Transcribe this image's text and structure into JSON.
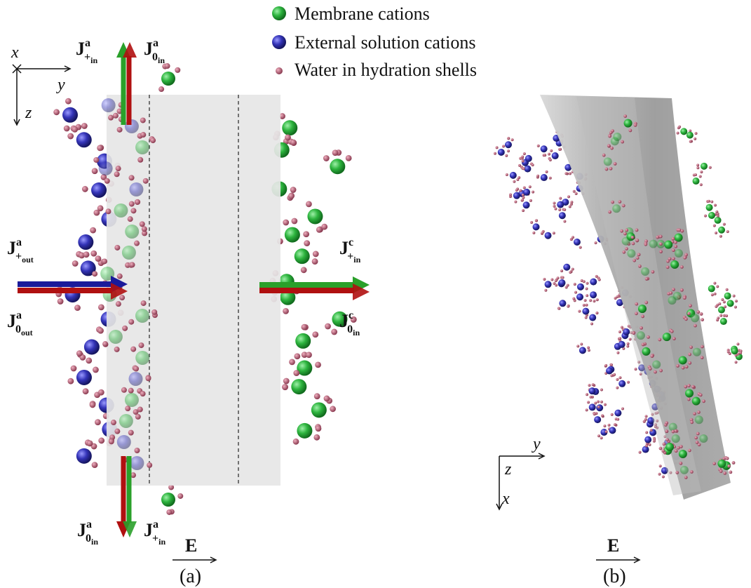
{
  "legend": [
    {
      "label": "Membrane cations"
    },
    {
      "label": "External solution cations"
    },
    {
      "label": "Water in hydration shells"
    }
  ],
  "axes_a": {
    "x": "x",
    "y": "y",
    "z": "z"
  },
  "axes_b": {
    "y": "y",
    "z": "z",
    "x": "x"
  },
  "fluxes": [
    {
      "base": "J",
      "sup": "a",
      "sub": "+",
      "subsub": "in"
    },
    {
      "base": "J",
      "sup": "a",
      "sub": "0",
      "subsub": "in"
    },
    {
      "base": "J",
      "sup": "a",
      "sub": "+",
      "subsub": "out"
    },
    {
      "base": "J",
      "sup": "a",
      "sub": "0",
      "subsub": "out"
    },
    {
      "base": "J",
      "sup": "c",
      "sub": "+",
      "subsub": "in"
    },
    {
      "base": "J",
      "sup": "c",
      "sub": "0",
      "subsub": "in"
    },
    {
      "base": "J",
      "sup": "a",
      "sub": "0",
      "subsub": "in"
    },
    {
      "base": "J",
      "sup": "a",
      "sub": "+",
      "subsub": "in"
    }
  ],
  "field": {
    "a": "E",
    "b": "E"
  },
  "panels": [
    "(a)",
    "(b)"
  ]
}
